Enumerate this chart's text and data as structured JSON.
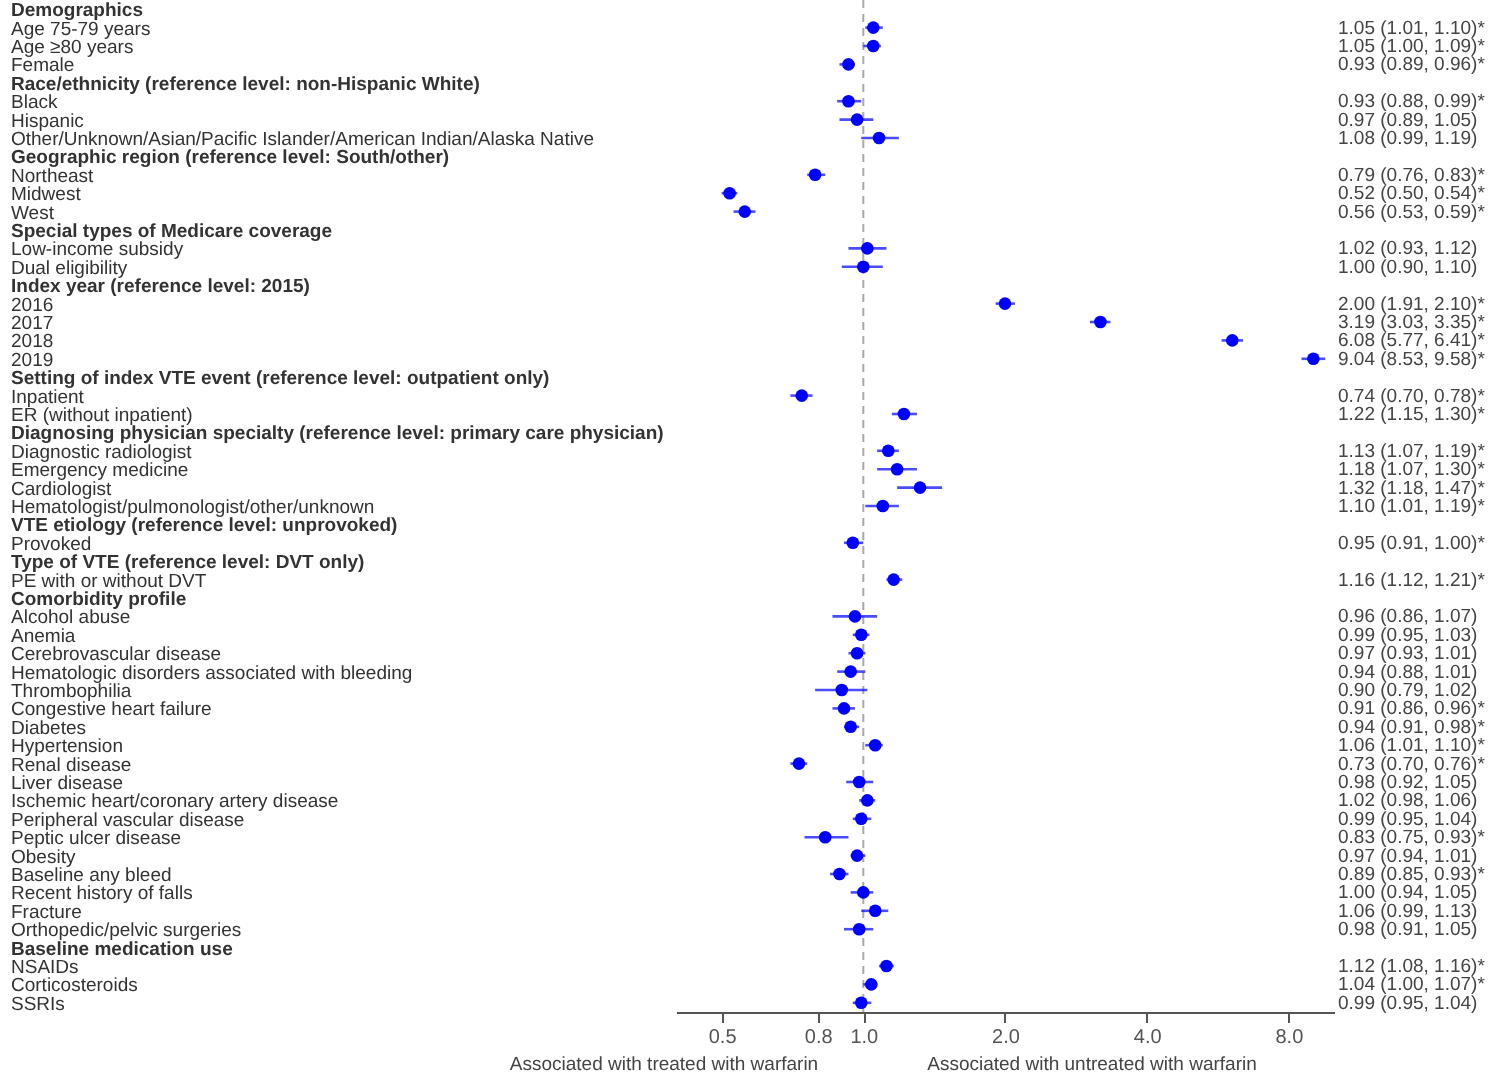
{
  "chart_data": {
    "type": "scatter",
    "orientation": "horizontal",
    "log": "x",
    "grid": false,
    "marker": "circle",
    "categories": [
      "Demographics",
      "Age 75-79 years",
      "Age ≥80 years",
      "Female",
      "Race/ethnicity (reference level: non-Hispanic White)",
      "Black",
      "Hispanic",
      "Other/Unknown/Asian/Pacific Islander/American Indian/Alaska Native",
      "Geographic region (reference level: South/other)",
      "Northeast",
      "Midwest",
      "West",
      "Special types of Medicare coverage",
      "Low-income subsidy",
      "Dual eligibility",
      "Index year (reference level: 2015)",
      "2016",
      "2017",
      "2018",
      "2019",
      "Setting of index VTE event (reference level: outpatient only)",
      "Inpatient",
      "ER (without inpatient)",
      "Diagnosing physician specialty (reference level: primary care physician)",
      "Diagnostic radiologist",
      "Emergency medicine",
      "Cardiologist",
      "Hematologist/pulmonologist/other/unknown",
      "VTE etiology (reference level: unprovoked)",
      "Provoked",
      "Type of VTE (reference level: DVT only)",
      "PE with or without DVT",
      "Comorbidity profile",
      "Alcohol abuse",
      "Anemia",
      "Cerebrovascular disease",
      "Hematologic disorders associated with bleeding",
      "Thrombophilia",
      "Congestive heart failure",
      "Diabetes",
      "Hypertension",
      "Renal disease",
      "Liver disease",
      "Ischemic heart/coronary artery disease",
      "Peripheral vascular disease",
      "Peptic ulcer disease",
      "Obesity",
      "Baseline any bleed",
      "Recent history of falls",
      "Fracture",
      "Orthopedic/pelvic surgeries",
      "Baseline medication use",
      "NSAIDs",
      "Corticosteroids",
      "SSRIs"
    ],
    "series": [
      {
        "color": "#0000ff",
        "values": [
          null,
          1.05,
          1.05,
          0.93,
          null,
          0.93,
          0.97,
          1.08,
          null,
          0.79,
          0.52,
          0.56,
          null,
          1.02,
          1.0,
          null,
          2.0,
          3.19,
          6.08,
          9.04,
          null,
          0.74,
          1.22,
          null,
          1.13,
          1.18,
          1.32,
          1.1,
          null,
          0.95,
          null,
          1.16,
          null,
          0.96,
          0.99,
          0.97,
          0.94,
          0.9,
          0.91,
          0.94,
          1.06,
          0.73,
          0.98,
          1.02,
          0.99,
          0.83,
          0.97,
          0.89,
          1.0,
          1.06,
          0.98,
          null,
          1.12,
          1.04,
          0.99
        ],
        "errors": [
          null,
          [
            1.01,
            1.1
          ],
          [
            1.0,
            1.09
          ],
          [
            0.89,
            0.96
          ],
          null,
          [
            0.88,
            0.99
          ],
          [
            0.89,
            1.05
          ],
          [
            0.99,
            1.19
          ],
          null,
          [
            0.76,
            0.83
          ],
          [
            0.5,
            0.54
          ],
          [
            0.53,
            0.59
          ],
          null,
          [
            0.93,
            1.12
          ],
          [
            0.9,
            1.1
          ],
          null,
          [
            1.91,
            2.1
          ],
          [
            3.03,
            3.35
          ],
          [
            5.77,
            6.41
          ],
          [
            8.53,
            9.58
          ],
          null,
          [
            0.7,
            0.78
          ],
          [
            1.15,
            1.3
          ],
          null,
          [
            1.07,
            1.19
          ],
          [
            1.07,
            1.3
          ],
          [
            1.18,
            1.47
          ],
          [
            1.01,
            1.19
          ],
          null,
          [
            0.91,
            1.0
          ],
          null,
          [
            1.12,
            1.21
          ],
          null,
          [
            0.86,
            1.07
          ],
          [
            0.95,
            1.03
          ],
          [
            0.93,
            1.01
          ],
          [
            0.88,
            1.01
          ],
          [
            0.79,
            1.02
          ],
          [
            0.86,
            0.96
          ],
          [
            0.91,
            0.98
          ],
          [
            1.01,
            1.1
          ],
          [
            0.7,
            0.76
          ],
          [
            0.92,
            1.05
          ],
          [
            0.98,
            1.06
          ],
          [
            0.95,
            1.04
          ],
          [
            0.75,
            0.93
          ],
          [
            0.94,
            1.01
          ],
          [
            0.85,
            0.93
          ],
          [
            0.94,
            1.05
          ],
          [
            0.99,
            1.13
          ],
          [
            0.91,
            1.05
          ],
          null,
          [
            1.08,
            1.16
          ],
          [
            1.0,
            1.07
          ],
          [
            0.95,
            1.04
          ]
        ],
        "value_labels": [
          null,
          "1.05 (1.01, 1.10)*",
          "1.05 (1.00, 1.09)*",
          "0.93 (0.89, 0.96)*",
          null,
          "0.93 (0.88, 0.99)*",
          "0.97 (0.89, 1.05)",
          "1.08 (0.99, 1.19)",
          null,
          "0.79 (0.76, 0.83)*",
          "0.52 (0.50, 0.54)*",
          "0.56 (0.53, 0.59)*",
          null,
          "1.02 (0.93, 1.12)",
          "1.00 (0.90, 1.10)",
          null,
          "2.00 (1.91, 2.10)*",
          "3.19 (3.03, 3.35)*",
          "6.08 (5.77, 6.41)*",
          "9.04 (8.53, 9.58)*",
          null,
          "0.74 (0.70, 0.78)*",
          "1.22 (1.15, 1.30)*",
          null,
          "1.13 (1.07, 1.19)*",
          "1.18 (1.07, 1.30)*",
          "1.32 (1.18, 1.47)*",
          "1.10 (1.01, 1.19)*",
          null,
          "0.95 (0.91, 1.00)*",
          null,
          "1.16 (1.12, 1.21)*",
          null,
          "0.96 (0.86, 1.07)",
          "0.99 (0.95, 1.03)",
          "0.97 (0.93, 1.01)",
          "0.94 (0.88, 1.01)",
          "0.90 (0.79, 1.02)",
          "0.91 (0.86, 0.96)*",
          "0.94 (0.91, 0.98)*",
          "1.06 (1.01, 1.10)*",
          "0.73 (0.70, 0.76)*",
          "0.98 (0.92, 1.05)",
          "1.02 (0.98, 1.06)",
          "0.99 (0.95, 1.04)",
          "0.83 (0.75, 0.93)*",
          "0.97 (0.94, 1.01)",
          "0.89 (0.85, 0.93)*",
          "1.00 (0.94, 1.05)",
          "1.06 (0.99, 1.13)",
          "0.98 (0.91, 1.05)",
          null,
          "1.12 (1.08, 1.16)*",
          "1.04 (1.00, 1.07)*",
          "0.99 (0.95, 1.04)"
        ]
      }
    ],
    "xlim": [
      0.4,
      10
    ],
    "xticks": [
      0.5,
      0.8,
      {
        "value": 1,
        "label": "1.0"
      },
      {
        "value": 2,
        "label": "2.0"
      },
      {
        "value": 4,
        "label": "4.0"
      },
      {
        "value": 8,
        "label": "8.0"
      }
    ],
    "ref_lines": [
      {
        "axis": "x",
        "value": 1,
        "label": null,
        "color": "#aaaaaa",
        "line_style": "dashed"
      }
    ],
    "annotations": [
      "Associated with treated with warfarin",
      "Associated with untreated with warfarin"
    ]
  }
}
